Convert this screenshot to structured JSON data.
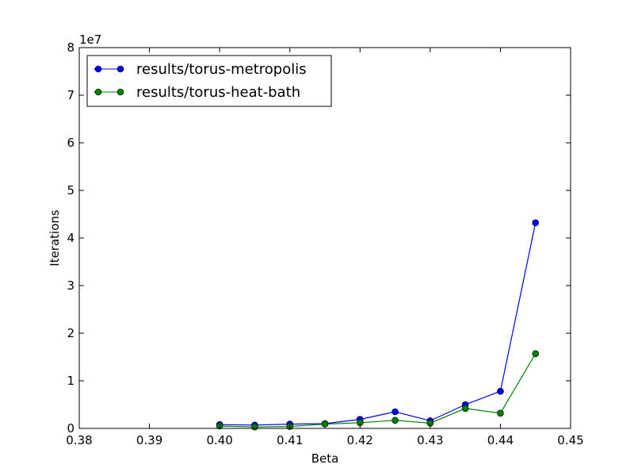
{
  "chart_data": {
    "type": "line",
    "xlabel": "Beta",
    "ylabel": "Iterations",
    "y_offset_label": "1e7",
    "xlim": [
      0.38,
      0.45
    ],
    "ylim": [
      0,
      80000000
    ],
    "x_ticks": [
      0.38,
      0.39,
      0.4,
      0.41,
      0.42,
      0.43,
      0.44,
      0.45
    ],
    "x_tick_labels": [
      "0.38",
      "0.39",
      "0.40",
      "0.41",
      "0.42",
      "0.43",
      "0.44",
      "0.45"
    ],
    "y_ticks": [
      0,
      10000000,
      20000000,
      30000000,
      40000000,
      50000000,
      60000000,
      70000000,
      80000000
    ],
    "y_tick_labels": [
      "0",
      "1",
      "2",
      "3",
      "4",
      "5",
      "6",
      "7",
      "8"
    ],
    "grid": false,
    "legend_position": "top-left",
    "x": [
      0.4,
      0.405,
      0.41,
      0.415,
      0.42,
      0.425,
      0.43,
      0.435,
      0.44,
      0.445
    ],
    "series": [
      {
        "name": "results/torus-metropolis",
        "color": "#0000ff",
        "values": [
          800000,
          700000,
          900000,
          1000000,
          1900000,
          3500000,
          1600000,
          5000000,
          7800000,
          43200000
        ]
      },
      {
        "name": "results/torus-heat-bath",
        "color": "#008000",
        "values": [
          500000,
          300000,
          400000,
          900000,
          1200000,
          1700000,
          1100000,
          4200000,
          3200000,
          15700000
        ]
      }
    ]
  }
}
